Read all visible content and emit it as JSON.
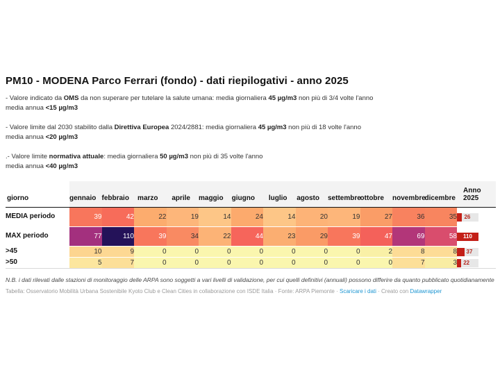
{
  "header": {
    "title": "PM10 - MODENA Parco Ferrari (fondo) - dati riepilogativi - anno 2025"
  },
  "notes": [
    {
      "line1": [
        {
          "t": "- Valore indicato da "
        },
        {
          "t": "OMS",
          "b": 1
        },
        {
          "t": " da non superare per tutelare la salute umana: media giornaliera "
        },
        {
          "t": "45 µg/m3",
          "b": 1
        },
        {
          "t": " non più di 3/4 volte l'anno"
        }
      ],
      "line2": [
        {
          "t": "media annua "
        },
        {
          "t": "<15 µg/m3",
          "b": 1
        }
      ]
    },
    {
      "line1": [
        {
          "t": "- Valore limite dal 2030 stabilito dalla "
        },
        {
          "t": "Direttiva Europea",
          "b": 1
        },
        {
          "t": " 2024/2881: media giornaliera "
        },
        {
          "t": "45 µg/m3",
          "b": 1
        },
        {
          "t": " non più di 18 volte l'anno"
        }
      ],
      "line2": [
        {
          "t": "media annua "
        },
        {
          "t": "<20 µg/m3",
          "b": 1
        }
      ]
    },
    {
      "line1": [
        {
          "t": ".- Valore limite "
        },
        {
          "t": "normativa attuale",
          "b": 1
        },
        {
          "t": ": media giornaliera "
        },
        {
          "t": "50 µg/m3",
          "b": 1
        },
        {
          "t": " non più di 35 volte l'anno"
        }
      ],
      "line2": [
        {
          "t": "media annua "
        },
        {
          "t": "<40 µg/m3",
          "b": 1
        }
      ]
    }
  ],
  "table": {
    "first_col_header": "giorno",
    "months": [
      "gennaio",
      "febbraio",
      "marzo",
      "aprile",
      "maggio",
      "giugno",
      "luglio",
      "agosto",
      "settembre",
      "ottobre",
      "novembre",
      "dicembre"
    ],
    "anno_header_line1": "Anno",
    "anno_header_line2": "2025",
    "rows": [
      {
        "label": "MEDIA periodo",
        "size": "big",
        "cells": [
          {
            "v": "39",
            "bg": "#f8765c",
            "fg": "#ffffff"
          },
          {
            "v": "42",
            "bg": "#f76c5a",
            "fg": "#ffffff"
          },
          {
            "v": "22",
            "bg": "#fcac6e",
            "fg": "#333333"
          },
          {
            "v": "19",
            "bg": "#fdb67a",
            "fg": "#333333"
          },
          {
            "v": "14",
            "bg": "#fdc687",
            "fg": "#333333"
          },
          {
            "v": "24",
            "bg": "#fcaa6d",
            "fg": "#333333"
          },
          {
            "v": "14",
            "bg": "#fdc687",
            "fg": "#333333"
          },
          {
            "v": "20",
            "bg": "#fdb377",
            "fg": "#333333"
          },
          {
            "v": "19",
            "bg": "#fdb67a",
            "fg": "#333333"
          },
          {
            "v": "27",
            "bg": "#fa9d67",
            "fg": "#333333"
          },
          {
            "v": "36",
            "bg": "#f8825f",
            "fg": "#333333"
          },
          {
            "v": "35",
            "bg": "#f8855f",
            "fg": "#333333"
          }
        ],
        "anno": {
          "v": "26",
          "frac": 0.24
        }
      },
      {
        "label": "MAX periodo",
        "size": "big",
        "cells": [
          {
            "v": "77",
            "bg": "#a3307e",
            "fg": "#ffffff"
          },
          {
            "v": "110",
            "bg": "#241259",
            "fg": "#ffffff"
          },
          {
            "v": "39",
            "bg": "#f8765c",
            "fg": "#ffffff"
          },
          {
            "v": "34",
            "bg": "#f98a62",
            "fg": "#333333"
          },
          {
            "v": "22",
            "bg": "#fcb376",
            "fg": "#333333"
          },
          {
            "v": "44",
            "bg": "#f6655b",
            "fg": "#ffffff"
          },
          {
            "v": "23",
            "bg": "#fbae71",
            "fg": "#333333"
          },
          {
            "v": "29",
            "bg": "#fa9b66",
            "fg": "#333333"
          },
          {
            "v": "39",
            "bg": "#f8765c",
            "fg": "#ffffff"
          },
          {
            "v": "47",
            "bg": "#f4615a",
            "fg": "#ffffff"
          },
          {
            "v": "69",
            "bg": "#b23679",
            "fg": "#ffffff"
          },
          {
            "v": "58",
            "bg": "#d94d6d",
            "fg": "#ffffff"
          }
        ],
        "anno": {
          "v": "110",
          "frac": 1
        }
      },
      {
        "label": ">45",
        "size": "small",
        "cells": [
          {
            "v": "10",
            "bg": "#fdd58f",
            "fg": "#333333"
          },
          {
            "v": "9",
            "bg": "#fdd893",
            "fg": "#333333"
          },
          {
            "v": "0",
            "bg": "#faf6ae",
            "fg": "#333333"
          },
          {
            "v": "0",
            "bg": "#faf6ae",
            "fg": "#333333"
          },
          {
            "v": "0",
            "bg": "#faf6ae",
            "fg": "#333333"
          },
          {
            "v": "0",
            "bg": "#faf6ae",
            "fg": "#333333"
          },
          {
            "v": "0",
            "bg": "#faf6ae",
            "fg": "#333333"
          },
          {
            "v": "0",
            "bg": "#faf6ae",
            "fg": "#333333"
          },
          {
            "v": "0",
            "bg": "#faf6ae",
            "fg": "#333333"
          },
          {
            "v": "2",
            "bg": "#f9f0a6",
            "fg": "#333333"
          },
          {
            "v": "8",
            "bg": "#fddc96",
            "fg": "#333333"
          },
          {
            "v": "8",
            "bg": "#fddc96",
            "fg": "#333333"
          }
        ],
        "anno": {
          "v": "37",
          "frac": 0.34
        }
      },
      {
        "label": ">50",
        "size": "small",
        "cells": [
          {
            "v": "5",
            "bg": "#fce69e",
            "fg": "#333333"
          },
          {
            "v": "7",
            "bg": "#fcdf98",
            "fg": "#333333"
          },
          {
            "v": "0",
            "bg": "#faf6ae",
            "fg": "#333333"
          },
          {
            "v": "0",
            "bg": "#faf6ae",
            "fg": "#333333"
          },
          {
            "v": "0",
            "bg": "#faf6ae",
            "fg": "#333333"
          },
          {
            "v": "0",
            "bg": "#faf6ae",
            "fg": "#333333"
          },
          {
            "v": "0",
            "bg": "#faf6ae",
            "fg": "#333333"
          },
          {
            "v": "0",
            "bg": "#faf6ae",
            "fg": "#333333"
          },
          {
            "v": "0",
            "bg": "#faf6ae",
            "fg": "#333333"
          },
          {
            "v": "0",
            "bg": "#faf6ae",
            "fg": "#333333"
          },
          {
            "v": "7",
            "bg": "#fcdf98",
            "fg": "#333333"
          },
          {
            "v": "3",
            "bg": "#f9eda3",
            "fg": "#333333"
          }
        ],
        "anno": {
          "v": "22",
          "frac": 0.2
        }
      }
    ]
  },
  "footer": {
    "note": "N.B. i dati rilevati dalle stazioni di monitoraggio delle ARPA sono soggetti a vari livelli di validazione, per cui quelli definitivi (annuali) possono differire da quanto pubblicato quotidianamente",
    "source_segments": [
      {
        "t": "Tabella: Osservatorio Mobilità Urbana Sostenibile Kyoto Club e Clean Cities in collaborazione con ISDE Italia · Fonte: ARPA Piemonte · "
      },
      {
        "t": "Scaricare i dati",
        "link": 1
      },
      {
        "t": " · Creato con "
      },
      {
        "t": "Datawrapper",
        "link": 1
      }
    ]
  },
  "colors": {
    "accent_red": "#c32018",
    "badge_bg": "#e7e7e7",
    "badge_text_red": "#b5271e",
    "link_blue": "#1e96d2",
    "header_row_bg": "#f3f3f3",
    "header_border": "#111111"
  },
  "chart_data": {
    "type": "heatmap",
    "title": "PM10 - MODENA Parco Ferrari (fondo) - dati riepilogativi - anno 2025",
    "unit": "µg/m3",
    "categories": [
      "gennaio",
      "febbraio",
      "marzo",
      "aprile",
      "maggio",
      "giugno",
      "luglio",
      "agosto",
      "settembre",
      "ottobre",
      "novembre",
      "dicembre"
    ],
    "series": [
      {
        "name": "MEDIA periodo",
        "values": [
          39,
          42,
          22,
          19,
          14,
          24,
          14,
          20,
          19,
          27,
          36,
          35
        ],
        "anno_2025": 26
      },
      {
        "name": "MAX periodo",
        "values": [
          77,
          110,
          39,
          34,
          22,
          44,
          23,
          29,
          39,
          47,
          69,
          58
        ],
        "anno_2025": 110
      },
      {
        "name": ">45",
        "values": [
          10,
          9,
          0,
          0,
          0,
          0,
          0,
          0,
          0,
          2,
          8,
          8
        ],
        "anno_2025": 37
      },
      {
        "name": ">50",
        "values": [
          5,
          7,
          0,
          0,
          0,
          0,
          0,
          0,
          0,
          0,
          7,
          3
        ],
        "anno_2025": 22
      }
    ],
    "color_scale": "low=pale-yellow #faf6ae, mid=orange #f8765c, high=dark-purple #241259",
    "legend_position": "none",
    "anno_bar_max": 110
  }
}
